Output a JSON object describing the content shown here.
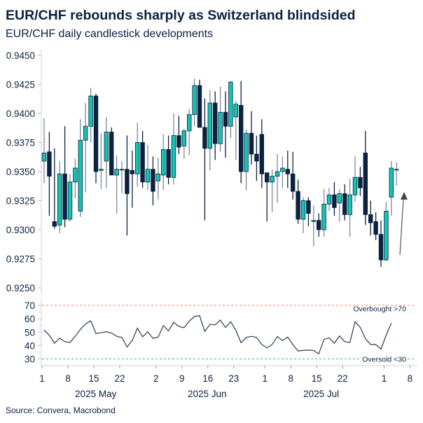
{
  "header": {
    "title": "EUR/CHF rebounds sharply as Switzerland blindsided",
    "subtitle": "EUR/CHF daily candlestick developments"
  },
  "footer": {
    "source": "Source: Convera, Macrobond"
  },
  "colors": {
    "up": "#14c4b2",
    "down": "#0b2240",
    "up_wick": "#7d8b98",
    "overbought": "#f07f6e",
    "oversold": "#1dbfae",
    "rsi_line": "#2a3b52",
    "arrow": "#555555"
  },
  "chart_data": [
    {
      "type": "candlestick",
      "ylim": [
        0.925,
        0.945
      ],
      "yticks": [
        "0.9450",
        "0.9425",
        "0.9400",
        "0.9375",
        "0.9350",
        "0.9325",
        "0.9300",
        "0.9275",
        "0.9250"
      ],
      "grid": false,
      "columns": [
        "date",
        "open",
        "high",
        "low",
        "close"
      ],
      "candles": [
        [
          "2025-05-01",
          0.9359,
          0.9396,
          0.934,
          0.9366
        ],
        [
          "2025-05-02",
          0.9367,
          0.9384,
          0.9312,
          0.9346
        ],
        [
          "2025-05-05",
          0.9307,
          0.937,
          0.9301,
          0.9303
        ],
        [
          "2025-05-06",
          0.9304,
          0.9359,
          0.9297,
          0.9348
        ],
        [
          "2025-05-07",
          0.9348,
          0.9389,
          0.9302,
          0.9309
        ],
        [
          "2025-05-08",
          0.9309,
          0.9348,
          0.9307,
          0.9341
        ],
        [
          "2025-05-09",
          0.9341,
          0.9361,
          0.9327,
          0.9353
        ],
        [
          "2025-05-12",
          0.9316,
          0.9395,
          0.9311,
          0.9377
        ],
        [
          "2025-05-13",
          0.9377,
          0.9409,
          0.9332,
          0.9389
        ],
        [
          "2025-05-14",
          0.9389,
          0.9422,
          0.9375,
          0.9415
        ],
        [
          "2025-05-15",
          0.9415,
          0.9417,
          0.934,
          0.935
        ],
        [
          "2025-05-16",
          0.9351,
          0.9383,
          0.9335,
          0.9352
        ],
        [
          "2025-05-19",
          0.9359,
          0.9397,
          0.9336,
          0.9384
        ],
        [
          "2025-05-20",
          0.9384,
          0.9388,
          0.9347,
          0.9347
        ],
        [
          "2025-05-21",
          0.9347,
          0.9364,
          0.9314,
          0.9352
        ],
        [
          "2025-05-22",
          0.9352,
          0.9359,
          0.9331,
          0.9352
        ],
        [
          "2025-05-23",
          0.9352,
          0.9381,
          0.9295,
          0.9331
        ],
        [
          "2025-05-26",
          0.9351,
          0.9368,
          0.9319,
          0.9348
        ],
        [
          "2025-05-27",
          0.9348,
          0.9392,
          0.9337,
          0.9375
        ],
        [
          "2025-05-28",
          0.9375,
          0.9385,
          0.9336,
          0.9341
        ],
        [
          "2025-05-29",
          0.9341,
          0.9373,
          0.9334,
          0.9352
        ],
        [
          "2025-05-30",
          0.9352,
          0.9363,
          0.9321,
          0.9333
        ],
        [
          "2025-06-02",
          0.9342,
          0.9362,
          0.9326,
          0.9348
        ],
        [
          "2025-06-03",
          0.9347,
          0.9382,
          0.9334,
          0.9369
        ],
        [
          "2025-06-04",
          0.9369,
          0.9381,
          0.9339,
          0.9345
        ],
        [
          "2025-06-05",
          0.9345,
          0.94,
          0.9339,
          0.9381
        ],
        [
          "2025-06-06",
          0.9381,
          0.9398,
          0.9365,
          0.9371
        ],
        [
          "2025-06-09",
          0.9372,
          0.9387,
          0.9361,
          0.9385
        ],
        [
          "2025-06-10",
          0.9385,
          0.9404,
          0.9364,
          0.9399
        ],
        [
          "2025-06-11",
          0.9399,
          0.943,
          0.9389,
          0.9424
        ],
        [
          "2025-06-12",
          0.9424,
          0.9429,
          0.9388,
          0.9388
        ],
        [
          "2025-06-13",
          0.9388,
          0.9413,
          0.9308,
          0.937
        ],
        [
          "2025-06-16",
          0.937,
          0.942,
          0.9351,
          0.9409
        ],
        [
          "2025-06-17",
          0.9409,
          0.9419,
          0.936,
          0.9374
        ],
        [
          "2025-06-18",
          0.9374,
          0.9423,
          0.9367,
          0.9401
        ],
        [
          "2025-06-19",
          0.9401,
          0.9419,
          0.9362,
          0.9389
        ],
        [
          "2025-06-20",
          0.9389,
          0.9428,
          0.9379,
          0.9427
        ],
        [
          "2025-06-23",
          0.9397,
          0.9411,
          0.936,
          0.9408
        ],
        [
          "2025-06-24",
          0.9407,
          0.9428,
          0.934,
          0.935
        ],
        [
          "2025-06-25",
          0.935,
          0.9386,
          0.9334,
          0.9383
        ],
        [
          "2025-06-26",
          0.9383,
          0.9402,
          0.9356,
          0.9365
        ],
        [
          "2025-06-27",
          0.9365,
          0.9381,
          0.9342,
          0.9359
        ],
        [
          "2025-06-30",
          0.9382,
          0.9395,
          0.9336,
          0.9348
        ],
        [
          "2025-07-01",
          0.9349,
          0.9349,
          0.9307,
          0.9341
        ],
        [
          "2025-07-02",
          0.9341,
          0.9352,
          0.9315,
          0.9346
        ],
        [
          "2025-07-03",
          0.9346,
          0.9365,
          0.9323,
          0.935
        ],
        [
          "2025-07-04",
          0.935,
          0.9363,
          0.9336,
          0.9353
        ],
        [
          "2025-07-07",
          0.9352,
          0.9368,
          0.9336,
          0.9348
        ],
        [
          "2025-07-08",
          0.9348,
          0.9367,
          0.9326,
          0.9333
        ],
        [
          "2025-07-09",
          0.9333,
          0.9343,
          0.9305,
          0.9309
        ],
        [
          "2025-07-10",
          0.9309,
          0.9328,
          0.9297,
          0.9325
        ],
        [
          "2025-07-11",
          0.9325,
          0.9328,
          0.9303,
          0.9314
        ],
        [
          "2025-07-14",
          0.9307,
          0.9321,
          0.9286,
          0.9308
        ],
        [
          "2025-07-15",
          0.9308,
          0.9314,
          0.9294,
          0.93
        ],
        [
          "2025-07-16",
          0.93,
          0.9335,
          0.9294,
          0.9322
        ],
        [
          "2025-07-17",
          0.9322,
          0.9336,
          0.9316,
          0.933
        ],
        [
          "2025-07-18",
          0.933,
          0.9341,
          0.9312,
          0.9319
        ],
        [
          "2025-07-21",
          0.9323,
          0.9335,
          0.9307,
          0.9331
        ],
        [
          "2025-07-22",
          0.9331,
          0.9339,
          0.9308,
          0.9313
        ],
        [
          "2025-07-23",
          0.9313,
          0.9344,
          0.9294,
          0.933
        ],
        [
          "2025-07-24",
          0.933,
          0.9363,
          0.9324,
          0.9345
        ],
        [
          "2025-07-25",
          0.9345,
          0.9354,
          0.9329,
          0.9336
        ],
        [
          "2025-07-28",
          0.9366,
          0.9385,
          0.9304,
          0.9313
        ],
        [
          "2025-07-29",
          0.9313,
          0.9325,
          0.9295,
          0.9306
        ],
        [
          "2025-07-30",
          0.9307,
          0.9315,
          0.9291,
          0.9296
        ],
        [
          "2025-07-31",
          0.9296,
          0.9308,
          0.9268,
          0.9274
        ],
        [
          "2025-08-01",
          0.9274,
          0.9324,
          0.9273,
          0.9316
        ],
        [
          "2025-08-04",
          0.9328,
          0.9359,
          0.9312,
          0.9353
        ],
        [
          "2025-08-05",
          0.9352,
          0.9358,
          0.9338,
          0.9352
        ]
      ]
    },
    {
      "type": "line",
      "ylim": [
        30,
        70
      ],
      "yticks": [
        "70",
        "60",
        "50",
        "40",
        "30"
      ],
      "thresholds": [
        {
          "value": 70,
          "label": "Overbought >70"
        },
        {
          "value": 30,
          "label": "Oversold <30"
        }
      ],
      "values": [
        51.6,
        47.7,
        41.7,
        45.5,
        42.9,
        42.3,
        46.9,
        52.1,
        56.1,
        58.5,
        49.0,
        49.5,
        50.3,
        49.3,
        46.9,
        46.0,
        38.9,
        43.7,
        53.0,
        46.5,
        50.3,
        45.3,
        46.3,
        54.9,
        50.9,
        57.3,
        54.3,
        53.3,
        58.2,
        61.7,
        62.3,
        50.5,
        55.9,
        55.4,
        59.0,
        53.5,
        57.8,
        51.2,
        42.2,
        46.0,
        46.9,
        46.0,
        40.8,
        38.2,
        40.8,
        46.7,
        43.7,
        46.3,
        40.8,
        35.9,
        36.4,
        36.6,
        36.3,
        33.8,
        44.6,
        45.7,
        41.7,
        47.2,
        42.9,
        42.2,
        57.8,
        53.5,
        45.1,
        40.8,
        40.8,
        37.3,
        47.7,
        56.8
      ]
    }
  ],
  "x_axis": {
    "ticks": [
      {
        "date": "2025-05-01",
        "label": "1"
      },
      {
        "date": "2025-05-08",
        "label": "8"
      },
      {
        "date": "2025-05-15",
        "label": "15"
      },
      {
        "date": "2025-05-22",
        "label": "22"
      },
      {
        "date": "2025-06-02",
        "label": "2"
      },
      {
        "date": "2025-06-09",
        "label": "9"
      },
      {
        "date": "2025-06-16",
        "label": "16"
      },
      {
        "date": "2025-06-23",
        "label": "23"
      },
      {
        "date": "2025-07-01",
        "label": "1"
      },
      {
        "date": "2025-07-08",
        "label": "8"
      },
      {
        "date": "2025-07-15",
        "label": "15"
      },
      {
        "date": "2025-07-22",
        "label": "22"
      },
      {
        "date": "2025-08-01",
        "label": "1"
      },
      {
        "date": "2025-08-08",
        "label": "8"
      }
    ],
    "months": [
      {
        "label": "2025 May",
        "from": "2025-05-01",
        "to": "2025-05-30"
      },
      {
        "label": "2025 Jun",
        "from": "2025-06-02",
        "to": "2025-06-30"
      },
      {
        "label": "2025 Jul",
        "from": "2025-07-01",
        "to": "2025-07-31"
      }
    ]
  }
}
